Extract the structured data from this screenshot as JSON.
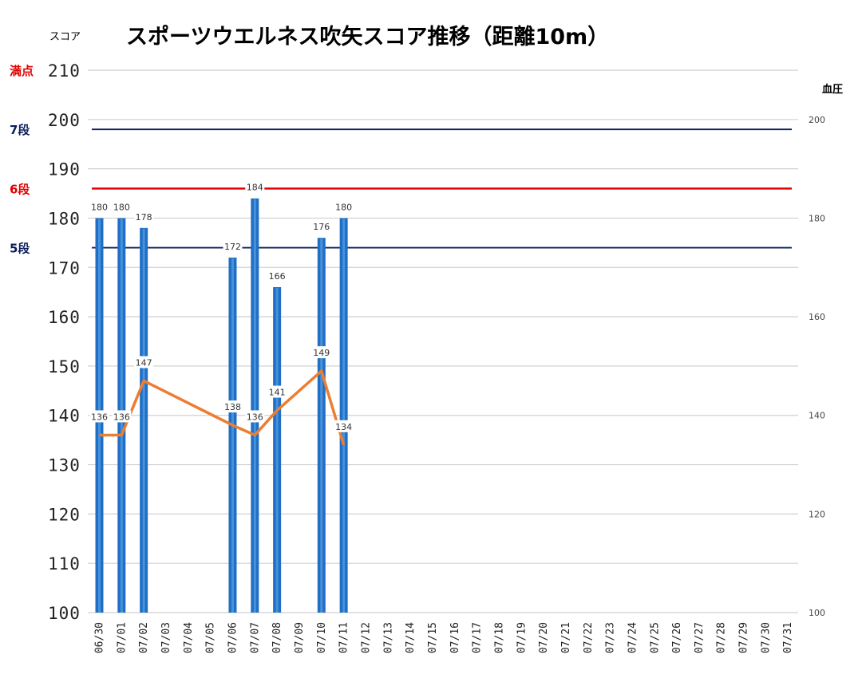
{
  "chart_data": {
    "type": "bar+line",
    "title": "スポーツウエルネス吹矢スコア推移（距離10m）",
    "ylabel": "スコア",
    "y2label": "血圧",
    "ylim": [
      100,
      210
    ],
    "yticks": [
      "100",
      "110",
      "120",
      "130",
      "140",
      "150",
      "160",
      "170",
      "180",
      "190",
      "200",
      "210"
    ],
    "y2lim": [
      100,
      210
    ],
    "y2ticks": [
      "100",
      "120",
      "140",
      "160",
      "180",
      "200"
    ],
    "categories": [
      "06/30",
      "07/01",
      "07/02",
      "07/03",
      "07/04",
      "07/05",
      "07/06",
      "07/07",
      "07/08",
      "07/09",
      "07/10",
      "07/11",
      "07/12",
      "07/13",
      "07/14",
      "07/15",
      "07/16",
      "07/17",
      "07/18",
      "07/19",
      "07/20",
      "07/21",
      "07/22",
      "07/23",
      "07/24",
      "07/25",
      "07/26",
      "07/27",
      "07/28",
      "07/29",
      "07/30",
      "07/31"
    ],
    "series": [
      {
        "kind": "bar",
        "axis": "left",
        "values": [
          180,
          180,
          178,
          null,
          null,
          null,
          172,
          184,
          166,
          null,
          176,
          180,
          null,
          null,
          null,
          null,
          null,
          null,
          null,
          null,
          null,
          null,
          null,
          null,
          null,
          null,
          null,
          null,
          null,
          null,
          null,
          null
        ],
        "color": "#1f6fc5"
      },
      {
        "kind": "line",
        "axis": "right",
        "values": [
          136,
          136,
          147,
          null,
          null,
          null,
          138,
          136,
          141,
          null,
          149,
          134,
          null,
          null,
          null,
          null,
          null,
          null,
          null,
          null,
          null,
          null,
          null,
          null,
          null,
          null,
          null,
          null,
          null,
          null,
          null,
          null
        ],
        "color": "#ed7d31"
      }
    ],
    "reference_lines": [
      {
        "label": "満点",
        "value": 210,
        "color": "#e00000",
        "line": false
      },
      {
        "label": "7段",
        "value": 198,
        "color": "#0b1d5a",
        "line": true
      },
      {
        "label": "6段",
        "value": 186,
        "color": "#e00000",
        "line": true
      },
      {
        "label": "5段",
        "value": 174,
        "color": "#0b1d5a",
        "line": true
      }
    ],
    "grid": true
  }
}
